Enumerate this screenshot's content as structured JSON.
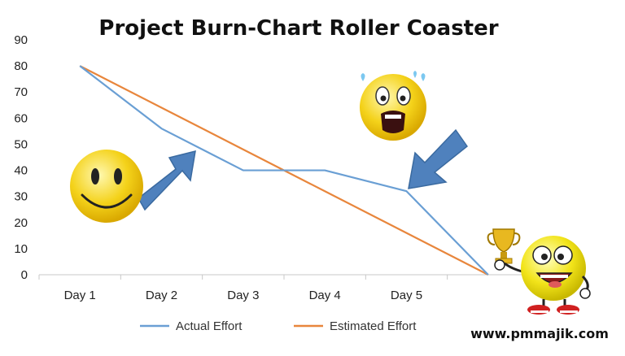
{
  "chart_data": {
    "type": "line",
    "title": "Project Burn-Chart Roller Coaster",
    "categories": [
      "Day 1",
      "Day 2",
      "Day 3",
      "Day 4",
      "Day 5",
      ""
    ],
    "ylim": [
      0,
      90
    ],
    "yticks": [
      0,
      10,
      20,
      30,
      40,
      50,
      60,
      70,
      80,
      90
    ],
    "grid": false,
    "legend_position": "bottom",
    "series": [
      {
        "name": "Actual Effort",
        "color": "#6a9fd4",
        "values": [
          80,
          56,
          40,
          40,
          32,
          0
        ]
      },
      {
        "name": "Estimated Effort",
        "color": "#e8863c",
        "values": [
          80,
          64,
          48,
          32,
          16,
          0
        ]
      }
    ]
  },
  "footer": {
    "website": "www.pmmajik.com"
  },
  "decorations": {
    "happy": "smiley-face-icon",
    "scared": "scared-face-icon",
    "trophy": "trophy-winner-icon",
    "arrow_color": "#4f81bd"
  }
}
